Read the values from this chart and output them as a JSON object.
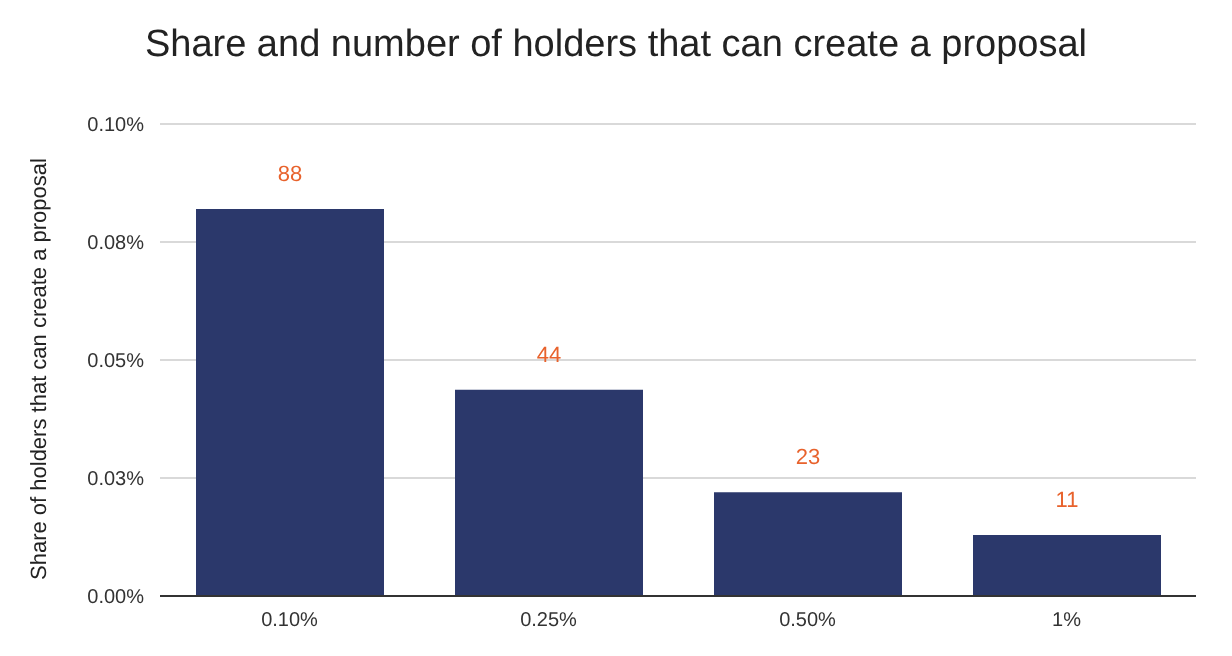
{
  "chart_data": {
    "type": "bar",
    "title": "Share and number of holders that can create a proposal",
    "ylabel": "Share of holders that can create a proposal",
    "categories": [
      "0.10%",
      "0.25%",
      "0.50%",
      "1%"
    ],
    "values": [
      0.082,
      0.0437,
      0.022,
      0.0129
    ],
    "annotations": [
      {
        "text": "88",
        "x": "0.10%",
        "y": 0.082
      },
      {
        "text": "44",
        "x": "0.25%",
        "y": 0.0437
      },
      {
        "text": "23",
        "x": "0.50%",
        "y": 0.022
      },
      {
        "text": "11",
        "x": "1%",
        "y": 0.0129
      }
    ],
    "color": "#2b386b",
    "ylim": [
      0,
      0.1
    ],
    "yticks": [
      {
        "value": 0,
        "label": "0.00%"
      },
      {
        "value": 0.025,
        "label": "0.03%"
      },
      {
        "value": 0.05,
        "label": "0.05%"
      },
      {
        "value": 0.075,
        "label": "0.08%"
      },
      {
        "value": 0.1,
        "label": "0.10%"
      }
    ],
    "grid": "y",
    "legend": false
  }
}
